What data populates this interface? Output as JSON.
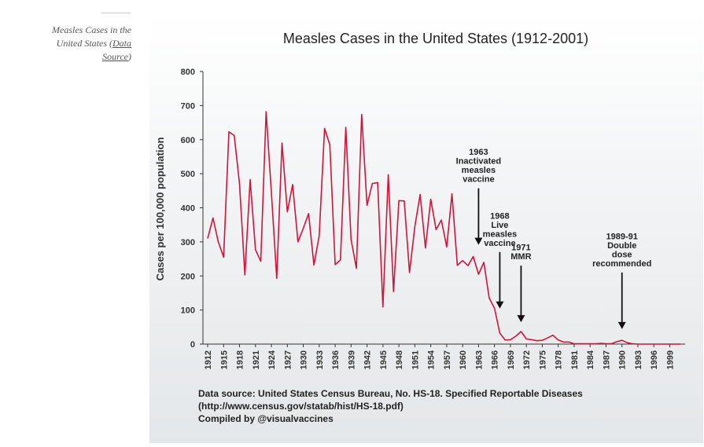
{
  "caption": {
    "text": "Measles Cases in the United States (",
    "link_label": "Data Source",
    "close": ")"
  },
  "chart_data": {
    "type": "line",
    "title": "Measles Cases in the United States (1912-2001)",
    "ylabel": "Cases per 100,000 population",
    "xlabel": "",
    "ylim": [
      0,
      800
    ],
    "yticks": [
      0,
      100,
      200,
      300,
      400,
      500,
      600,
      700,
      800
    ],
    "xlim": [
      1912,
      2001
    ],
    "xticks": [
      1912,
      1915,
      1918,
      1921,
      1924,
      1927,
      1930,
      1933,
      1936,
      1939,
      1942,
      1945,
      1948,
      1951,
      1954,
      1957,
      1960,
      1963,
      1966,
      1969,
      1972,
      1975,
      1978,
      1981,
      1984,
      1987,
      1990,
      1993,
      1996,
      1999
    ],
    "grid": false,
    "line_color": "#d2133a",
    "x": [
      1912,
      1913,
      1914,
      1915,
      1916,
      1917,
      1918,
      1919,
      1920,
      1921,
      1922,
      1923,
      1924,
      1925,
      1926,
      1927,
      1928,
      1929,
      1930,
      1931,
      1932,
      1933,
      1934,
      1935,
      1936,
      1937,
      1938,
      1939,
      1940,
      1941,
      1942,
      1943,
      1944,
      1945,
      1946,
      1947,
      1948,
      1949,
      1950,
      1951,
      1952,
      1953,
      1954,
      1955,
      1956,
      1957,
      1958,
      1959,
      1960,
      1961,
      1962,
      1963,
      1964,
      1965,
      1966,
      1967,
      1968,
      1969,
      1970,
      1971,
      1972,
      1973,
      1974,
      1975,
      1976,
      1977,
      1978,
      1979,
      1980,
      1981,
      1982,
      1983,
      1984,
      1985,
      1986,
      1987,
      1988,
      1989,
      1990,
      1991,
      1992,
      1993,
      1994,
      1995,
      1996,
      1997,
      1998,
      1999,
      2000,
      2001
    ],
    "y": [
      310,
      370,
      300,
      255,
      623,
      612,
      470,
      203,
      483,
      277,
      243,
      682,
      445,
      193,
      590,
      388,
      468,
      300,
      340,
      383,
      232,
      318,
      633,
      585,
      233,
      247,
      636,
      307,
      222,
      674,
      407,
      471,
      474,
      109,
      497,
      154,
      421,
      420,
      210,
      345,
      439,
      282,
      425,
      336,
      364,
      285,
      441,
      231,
      245,
      230,
      257,
      205,
      240,
      135,
      105,
      32,
      12,
      13,
      23,
      37,
      15,
      13,
      10,
      11,
      18,
      26,
      12,
      6,
      6,
      1,
      1,
      1,
      1,
      1,
      2,
      1,
      1,
      7,
      11,
      4,
      1,
      0,
      0,
      0,
      0,
      0,
      0,
      0,
      0,
      0
    ],
    "annotations": [
      {
        "lines": [
          "1963",
          "Inactivated",
          "measles",
          "vaccine"
        ],
        "x": 1963,
        "y": 282
      },
      {
        "lines": [
          "1968",
          "Live",
          "measles",
          "vaccine"
        ],
        "x": 1967,
        "y": 95
      },
      {
        "lines": [
          "1971",
          "MMR"
        ],
        "x": 1971,
        "y": 55
      },
      {
        "lines": [
          "1989-91",
          "Double",
          "dose",
          "recommended"
        ],
        "x": 1990,
        "y": 35
      }
    ],
    "footnote": [
      "Data source: United States Census Bureau, No. HS-18. Specified Reportable Diseases",
      "(http://www.census.gov/statab/hist/HS-18.pdf)",
      "Compiled by @visualvaccines"
    ]
  }
}
